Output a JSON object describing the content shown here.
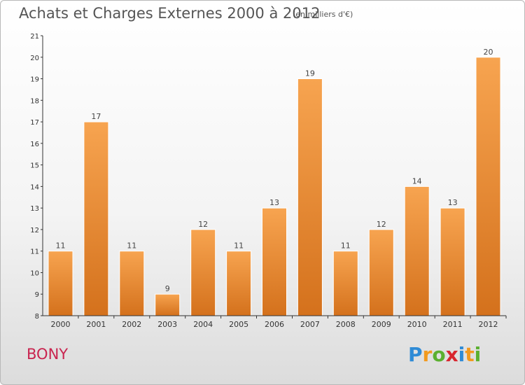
{
  "title": "Achats et Charges Externes 2000 à 2012",
  "unit": "(en milliers d'€)",
  "town": "BONY",
  "logo": {
    "letters": [
      "P",
      "r",
      "o",
      "x",
      "i",
      "t",
      "i"
    ],
    "colors": [
      "#2f8bd6",
      "#f29a1e",
      "#5bb030",
      "#d8262e",
      "#2f8bd6",
      "#f29a1e",
      "#5bb030"
    ]
  },
  "colors": {
    "bar_light": "#f7a450",
    "bar_dark": "#d4711c",
    "axis": "#333333",
    "town": "#c9244f"
  },
  "chart_data": {
    "type": "bar",
    "categories": [
      "2000",
      "2001",
      "2002",
      "2003",
      "2004",
      "2005",
      "2006",
      "2007",
      "2008",
      "2009",
      "2010",
      "2011",
      "2012"
    ],
    "values": [
      11,
      17,
      11,
      9,
      12,
      11,
      13,
      19,
      11,
      12,
      14,
      13,
      20
    ],
    "ylim": [
      8,
      21
    ],
    "yticks": [
      8,
      9,
      10,
      11,
      12,
      13,
      14,
      15,
      16,
      17,
      18,
      19,
      20,
      21
    ],
    "grid": false,
    "data_labels": true
  }
}
